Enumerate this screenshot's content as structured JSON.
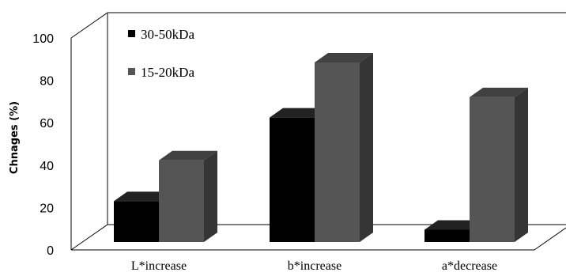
{
  "chart_data": {
    "type": "bar",
    "style": "3d-clustered-column",
    "categories": [
      "L*increase",
      "b*increase",
      "a*decrease"
    ],
    "series": [
      {
        "name": "30-50kDa",
        "values": [
          20,
          61,
          6
        ],
        "color": "#000000"
      },
      {
        "name": "15-20kDa",
        "values": [
          40,
          88,
          71
        ],
        "color": "#555555"
      }
    ],
    "ylabel": "Chnages (%)",
    "xlabel": "",
    "ylim": [
      0,
      100
    ],
    "yticks": [
      0,
      20,
      40,
      60,
      80,
      100
    ],
    "grid": false,
    "legend_position": "top-left inside"
  }
}
